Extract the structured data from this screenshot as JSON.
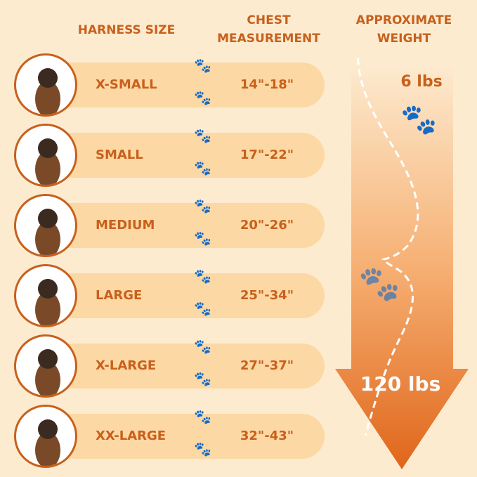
{
  "headers": {
    "size": "HARNESS SIZE",
    "chest": "CHEST MEASUREMENT",
    "weight": "APPROXIMATE WEIGHT"
  },
  "rows": [
    {
      "size": "X-SMALL",
      "chest": "14\"-18\""
    },
    {
      "size": "SMALL",
      "chest": "17\"-22\""
    },
    {
      "size": "MEDIUM",
      "chest": "20\"-26\""
    },
    {
      "size": "LARGE",
      "chest": "25\"-34\""
    },
    {
      "size": "X-LARGE",
      "chest": "27\"-37\""
    },
    {
      "size": "XX-LARGE",
      "chest": "32\"-43\""
    }
  ],
  "weight": {
    "min": "6 lbs",
    "max": "120 lbs"
  },
  "colors": {
    "accent": "#c8601c",
    "band": "#fcd8a4",
    "background": "#fdebd0",
    "arrow": "#e8701f"
  }
}
